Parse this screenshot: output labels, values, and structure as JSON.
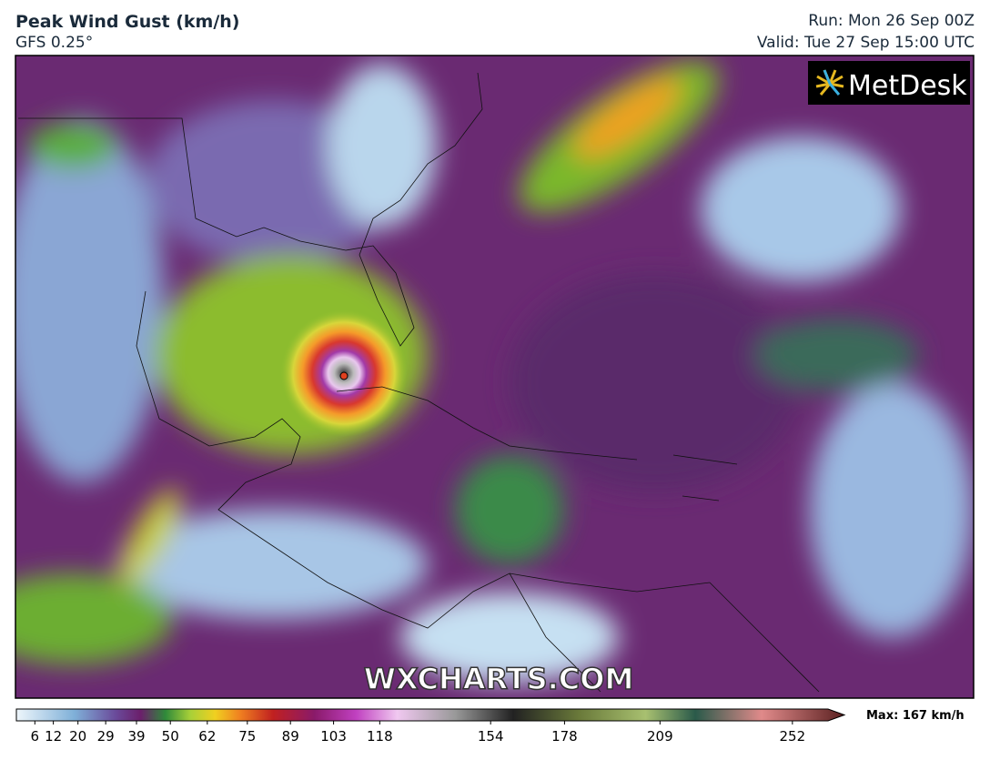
{
  "header": {
    "title": "Peak Wind Gust (km/h)",
    "subtitle": "GFS 0.25°",
    "run": "Run: Mon 26 Sep 00Z",
    "valid": "Valid: Tue 27 Sep 15:00 UTC"
  },
  "logo": "MetDesk",
  "watermark": "WXCHARTS.COM",
  "colorbar": {
    "xlim": [
      0,
      268
    ],
    "xticks": [
      6,
      12,
      20,
      29,
      39,
      50,
      62,
      75,
      89,
      103,
      118,
      154,
      178,
      209,
      252
    ],
    "max_label": "Max: 167 km/h"
  }
}
